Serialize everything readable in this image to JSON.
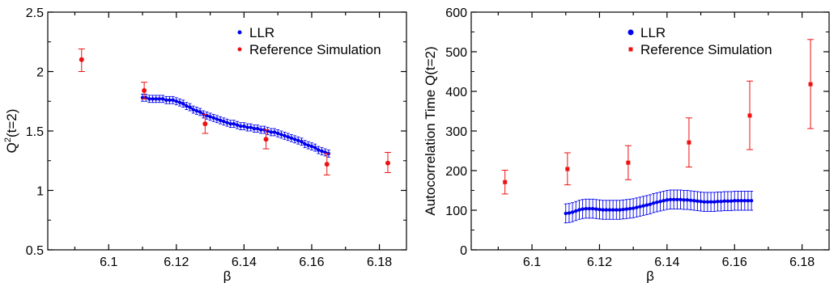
{
  "colors": {
    "llr": "#0000ee",
    "reference": "#ee1111",
    "axis": "#000000"
  },
  "chart_data": [
    {
      "type": "scatter",
      "ylabel_base": "Q",
      "ylabel_sup": "2",
      "ylabel_rest": "(t=2)",
      "xlabel": "β",
      "xlim": [
        6.082,
        6.188
      ],
      "ylim": [
        0.5,
        2.5
      ],
      "xticks": [
        6.1,
        6.12,
        6.14,
        6.16,
        6.18
      ],
      "xtick_labels": [
        "6.1",
        "6.12",
        "6.14",
        "6.16",
        "6.18"
      ],
      "yticks": [
        0.5,
        1,
        1.5,
        2,
        2.5
      ],
      "ytick_labels": [
        "0.5",
        "1",
        "1.5",
        "2",
        "2.5"
      ],
      "legend": [
        "LLR",
        "Reference Simulation"
      ],
      "legend_position": "top-right",
      "series": [
        {
          "name": "LLR",
          "marker": "circle",
          "band": true,
          "x_start": 6.11,
          "x_step": 0.001,
          "y": [
            1.78,
            1.78,
            1.77,
            1.77,
            1.77,
            1.77,
            1.77,
            1.76,
            1.76,
            1.76,
            1.75,
            1.74,
            1.73,
            1.71,
            1.7,
            1.68,
            1.67,
            1.66,
            1.64,
            1.63,
            1.62,
            1.61,
            1.6,
            1.59,
            1.58,
            1.57,
            1.56,
            1.56,
            1.55,
            1.54,
            1.54,
            1.53,
            1.53,
            1.52,
            1.52,
            1.51,
            1.51,
            1.5,
            1.49,
            1.49,
            1.48,
            1.47,
            1.46,
            1.45,
            1.44,
            1.43,
            1.42,
            1.41,
            1.39,
            1.38,
            1.37,
            1.36,
            1.34,
            1.33,
            1.32,
            1.31
          ],
          "err": 0.03
        },
        {
          "name": "Reference Simulation",
          "marker": "circle",
          "points": [
            {
              "x": 6.092,
              "y": 2.1,
              "lo": 2.0,
              "hi": 2.19
            },
            {
              "x": 6.1105,
              "y": 1.84,
              "lo": 1.77,
              "hi": 1.91
            },
            {
              "x": 6.1285,
              "y": 1.56,
              "lo": 1.48,
              "hi": 1.64
            },
            {
              "x": 6.1465,
              "y": 1.43,
              "lo": 1.35,
              "hi": 1.51
            },
            {
              "x": 6.1645,
              "y": 1.22,
              "lo": 1.13,
              "hi": 1.31
            },
            {
              "x": 6.1825,
              "y": 1.23,
              "lo": 1.15,
              "hi": 1.32
            }
          ]
        }
      ]
    },
    {
      "type": "scatter",
      "ylabel": "Autocorrelation Time Q(t=2)",
      "xlabel": "β",
      "xlim": [
        6.082,
        6.188
      ],
      "ylim": [
        0,
        600
      ],
      "xticks": [
        6.1,
        6.12,
        6.14,
        6.16,
        6.18
      ],
      "xtick_labels": [
        "6.1",
        "6.12",
        "6.14",
        "6.16",
        "6.18"
      ],
      "yticks": [
        0,
        100,
        200,
        300,
        400,
        500,
        600
      ],
      "ytick_labels": [
        "0",
        "100",
        "200",
        "300",
        "400",
        "500",
        "600"
      ],
      "legend": [
        "LLR",
        "Reference Simulation"
      ],
      "legend_position": "top-right",
      "series": [
        {
          "name": "LLR",
          "marker": "circle",
          "band": true,
          "x_start": 6.11,
          "x_step": 0.001,
          "y": [
            92,
            93,
            95,
            98,
            101,
            103,
            104,
            104,
            104,
            103,
            102,
            101,
            101,
            101,
            101,
            101,
            101,
            102,
            103,
            104,
            105,
            107,
            109,
            111,
            113,
            115,
            118,
            120,
            122,
            124,
            126,
            127,
            127,
            127,
            127,
            126,
            126,
            125,
            124,
            123,
            122,
            121,
            121,
            121,
            121,
            122,
            122,
            123,
            123,
            123,
            124,
            124,
            124,
            124,
            124,
            124
          ],
          "err": 24
        },
        {
          "name": "Reference Simulation",
          "marker": "square",
          "points": [
            {
              "x": 6.092,
              "y": 171,
              "lo": 141,
              "hi": 201
            },
            {
              "x": 6.1105,
              "y": 204,
              "lo": 164,
              "hi": 245
            },
            {
              "x": 6.1285,
              "y": 220,
              "lo": 177,
              "hi": 263
            },
            {
              "x": 6.1465,
              "y": 271,
              "lo": 209,
              "hi": 333
            },
            {
              "x": 6.1645,
              "y": 339,
              "lo": 253,
              "hi": 426
            },
            {
              "x": 6.1825,
              "y": 418,
              "lo": 306,
              "hi": 531
            }
          ]
        }
      ]
    }
  ]
}
